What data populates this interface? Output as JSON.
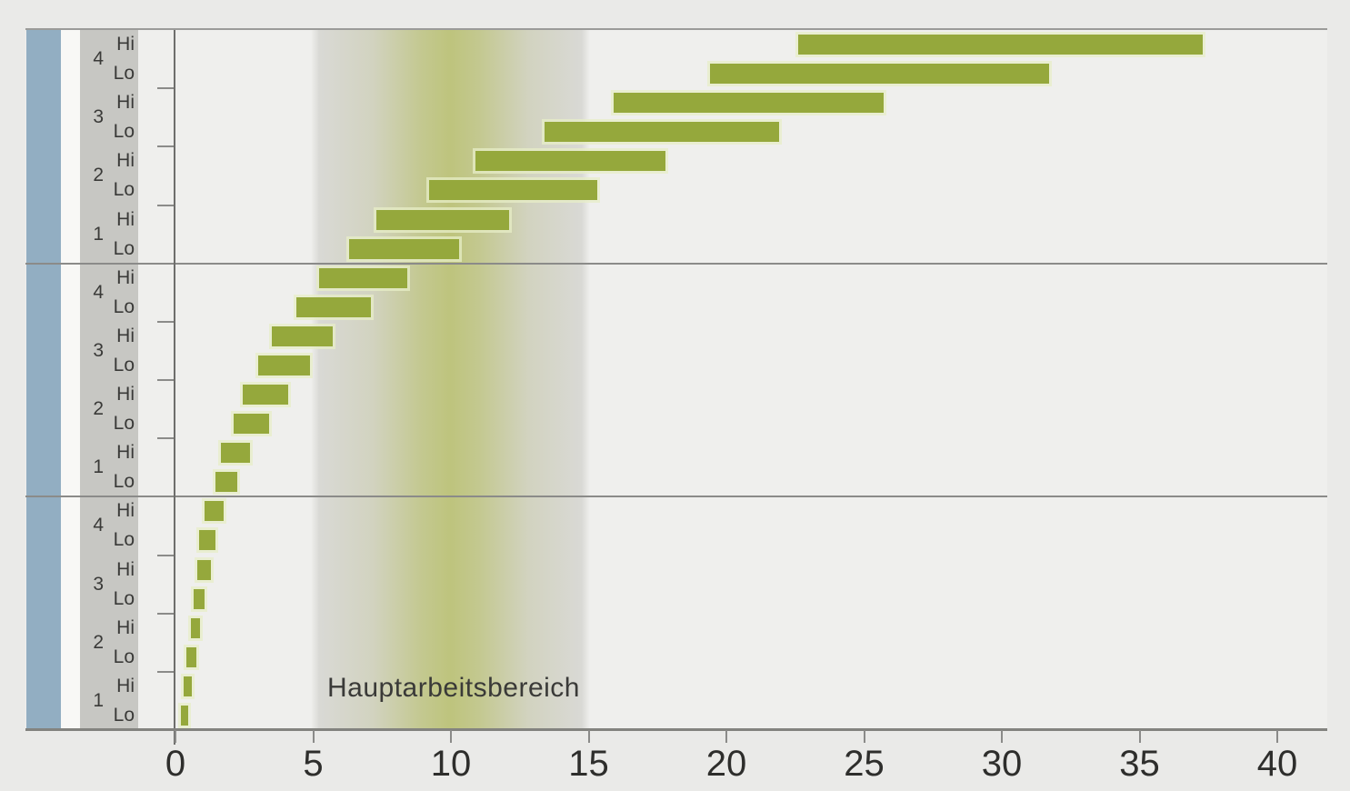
{
  "colors": {
    "page-bg": "#eaeae8",
    "plot-bg": "#efefed",
    "blue-strip": "#92aec2",
    "label-strip": "#c7c7c3",
    "bar": "#95a83c",
    "band-center": "#bec47d",
    "band-edge": "#d9d9d5",
    "text": "#3a3a38"
  },
  "chart_data": {
    "type": "bar",
    "subtype": "horizontal-range-bars",
    "title": "",
    "xlabel": "",
    "ylabel": "",
    "xlim": [
      0,
      41.8
    ],
    "x_ticks": [
      0,
      5,
      10,
      15,
      20,
      25,
      30,
      35,
      40
    ],
    "grid": false,
    "band": {
      "from": 5,
      "to": 15,
      "label": "Hauptarbeitsbereich"
    },
    "hi_label": "Hi",
    "lo_label": "Lo",
    "sections": [
      {
        "rows": [
          {
            "gear": "4",
            "hi": [
              22.6,
              37.3
            ],
            "lo": [
              19.4,
              31.7
            ]
          },
          {
            "gear": "3",
            "hi": [
              15.9,
              25.7
            ],
            "lo": [
              13.4,
              21.9
            ]
          },
          {
            "gear": "2",
            "hi": [
              10.9,
              17.8
            ],
            "lo": [
              9.2,
              15.3
            ]
          },
          {
            "gear": "1",
            "hi": [
              7.3,
              12.1
            ],
            "lo": [
              6.3,
              10.3
            ]
          }
        ]
      },
      {
        "rows": [
          {
            "gear": "4",
            "hi": [
              5.2,
              8.4
            ],
            "lo": [
              4.4,
              7.1
            ]
          },
          {
            "gear": "3",
            "hi": [
              3.5,
              5.7
            ],
            "lo": [
              3.0,
              4.9
            ]
          },
          {
            "gear": "2",
            "hi": [
              2.45,
              4.1
            ],
            "lo": [
              2.1,
              3.4
            ]
          },
          {
            "gear": "1",
            "hi": [
              1.65,
              2.7
            ],
            "lo": [
              1.45,
              2.25
            ]
          }
        ]
      },
      {
        "rows": [
          {
            "gear": "4",
            "hi": [
              1.05,
              1.75
            ],
            "lo": [
              0.85,
              1.45
            ]
          },
          {
            "gear": "3",
            "hi": [
              0.8,
              1.3
            ],
            "lo": [
              0.65,
              1.05
            ]
          },
          {
            "gear": "2",
            "hi": [
              0.55,
              0.9
            ],
            "lo": [
              0.4,
              0.75
            ]
          },
          {
            "gear": "1",
            "hi": [
              0.3,
              0.6
            ],
            "lo": [
              0.2,
              0.45
            ]
          }
        ]
      }
    ]
  }
}
